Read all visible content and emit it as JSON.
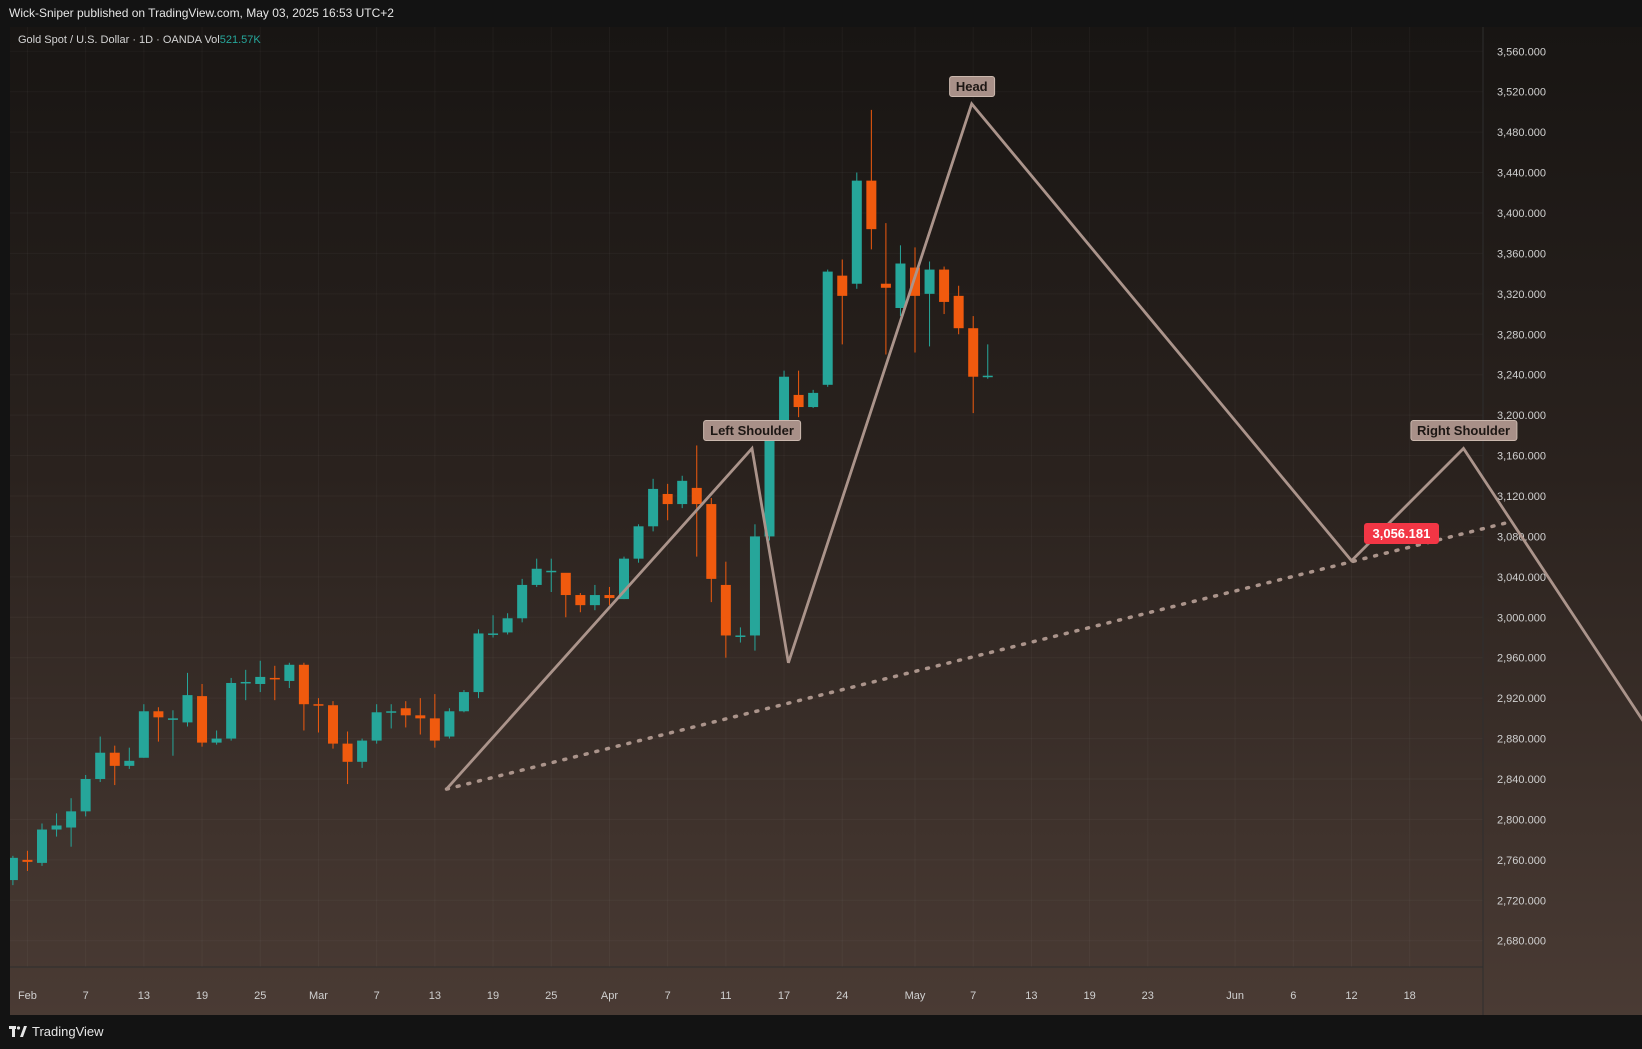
{
  "header": {
    "publisher_line": "Wick-Sniper published on TradingView.com, May 03, 2025 16:53 UTC+2"
  },
  "legend": {
    "symbol": "Gold Spot / U.S. Dollar · 1D · OANDA",
    "vol_label": "Vol",
    "vol_value": "521.57K"
  },
  "footer": {
    "brand": "TradingView"
  },
  "colors": {
    "up": "#26a69a",
    "down": "#f05a0e",
    "pattern": "#ab948b",
    "badge": "#f23645"
  },
  "chart_data": {
    "type": "candlestick",
    "y_ticks": [
      "2,680.000",
      "2,720.000",
      "2,760.000",
      "2,800.000",
      "2,840.000",
      "2,880.000",
      "2,920.000",
      "2,960.000",
      "3,000.000",
      "3,040.000",
      "3,080.000",
      "3,120.000",
      "3,160.000",
      "3,200.000",
      "3,240.000",
      "3,280.000",
      "3,320.000",
      "3,360.000",
      "3,400.000",
      "3,440.000",
      "3,480.000",
      "3,520.000",
      "3,560.000"
    ],
    "ylim": [
      2654,
      3584
    ],
    "x_ticks": [
      {
        "label": "Feb",
        "i": 1
      },
      {
        "label": "7",
        "i": 5
      },
      {
        "label": "13",
        "i": 9
      },
      {
        "label": "19",
        "i": 13
      },
      {
        "label": "25",
        "i": 17
      },
      {
        "label": "Mar",
        "i": 21
      },
      {
        "label": "7",
        "i": 25
      },
      {
        "label": "13",
        "i": 29
      },
      {
        "label": "19",
        "i": 33
      },
      {
        "label": "25",
        "i": 37
      },
      {
        "label": "Apr",
        "i": 41
      },
      {
        "label": "7",
        "i": 45
      },
      {
        "label": "11",
        "i": 49
      },
      {
        "label": "17",
        "i": 53
      },
      {
        "label": "24",
        "i": 57
      },
      {
        "label": "May",
        "i": 62
      },
      {
        "label": "7",
        "i": 66
      },
      {
        "label": "13",
        "i": 70
      },
      {
        "label": "19",
        "i": 74
      },
      {
        "label": "23",
        "i": 78
      },
      {
        "label": "Jun",
        "i": 84
      },
      {
        "label": "6",
        "i": 88
      },
      {
        "label": "12",
        "i": 92
      },
      {
        "label": "18",
        "i": 96
      }
    ],
    "candles": [
      [
        2740,
        2762,
        2735,
        2764
      ],
      [
        2760,
        2758,
        2749,
        2769
      ],
      [
        2757,
        2790,
        2754,
        2796
      ],
      [
        2790,
        2794,
        2783,
        2806
      ],
      [
        2792,
        2808,
        2773,
        2821
      ],
      [
        2808,
        2840,
        2803,
        2844
      ],
      [
        2840,
        2866,
        2837,
        2882
      ],
      [
        2866,
        2853,
        2834,
        2873
      ],
      [
        2853,
        2858,
        2850,
        2871
      ],
      [
        2861,
        2907,
        2861,
        2914
      ],
      [
        2907,
        2901,
        2877,
        2911
      ],
      [
        2900,
        2900,
        2863,
        2908
      ],
      [
        2896,
        2923,
        2892,
        2945
      ],
      [
        2922,
        2876,
        2872,
        2934
      ],
      [
        2876,
        2880,
        2874,
        2888
      ],
      [
        2880,
        2935,
        2878,
        2940
      ],
      [
        2935,
        2936,
        2918,
        2948
      ],
      [
        2934,
        2941,
        2926,
        2957
      ],
      [
        2940,
        2939,
        2918,
        2952
      ],
      [
        2937,
        2953,
        2930,
        2955
      ],
      [
        2953,
        2914,
        2888,
        2955
      ],
      [
        2914,
        2913,
        2886,
        2920
      ],
      [
        2913,
        2875,
        2870,
        2917
      ],
      [
        2875,
        2857,
        2835,
        2887
      ],
      [
        2857,
        2878,
        2851,
        2880
      ],
      [
        2878,
        2906,
        2875,
        2914
      ],
      [
        2906,
        2907,
        2890,
        2914
      ],
      [
        2910,
        2903,
        2891,
        2917
      ],
      [
        2903,
        2900,
        2884,
        2920
      ],
      [
        2900,
        2878,
        2871,
        2924
      ],
      [
        2882,
        2907,
        2880,
        2910
      ],
      [
        2907,
        2926,
        2906,
        2928
      ],
      [
        2926,
        2984,
        2920,
        2988
      ],
      [
        2984,
        2984,
        2980,
        3002
      ],
      [
        2985,
        2999,
        2983,
        3004
      ],
      [
        2999,
        3032,
        2995,
        3038
      ],
      [
        3032,
        3048,
        3030,
        3058
      ],
      [
        3046,
        3046,
        3025,
        3058
      ],
      [
        3044,
        3022,
        3000,
        3042
      ],
      [
        3022,
        3012,
        3005,
        3024
      ],
      [
        3012,
        3022,
        3007,
        3032
      ],
      [
        3022,
        3019,
        3012,
        3030
      ],
      [
        3018,
        3058,
        3018,
        3060
      ],
      [
        3058,
        3090,
        3054,
        3092
      ],
      [
        3090,
        3127,
        3085,
        3137
      ],
      [
        3122,
        3112,
        3096,
        3132
      ],
      [
        3112,
        3135,
        3108,
        3140
      ],
      [
        3128,
        3112,
        3060,
        3170
      ],
      [
        3112,
        3038,
        3015,
        3118
      ],
      [
        3032,
        2982,
        2960,
        3055
      ],
      [
        2982,
        2982,
        2975,
        2990
      ],
      [
        2982,
        3080,
        2967,
        3092
      ],
      [
        3080,
        3178,
        3076,
        3182
      ],
      [
        3178,
        3238,
        3178,
        3244
      ],
      [
        3220,
        3208,
        3198,
        3244
      ],
      [
        3208,
        3222,
        3207,
        3225
      ],
      [
        3230,
        3342,
        3228,
        3344
      ],
      [
        3338,
        3318,
        3270,
        3354
      ],
      [
        3330,
        3432,
        3325,
        3440
      ],
      [
        3432,
        3384,
        3364,
        3502
      ],
      [
        3330,
        3326,
        3260,
        3390
      ],
      [
        3306,
        3350,
        3298,
        3368
      ],
      [
        3346,
        3318,
        3262,
        3366
      ],
      [
        3320,
        3344,
        3268,
        3352
      ],
      [
        3344,
        3312,
        3300,
        3347
      ],
      [
        3318,
        3286,
        3280,
        3328
      ],
      [
        3286,
        3238,
        3202,
        3298
      ],
      [
        3238,
        3239,
        3236,
        3270
      ]
    ],
    "pattern_path": [
      [
        29.8,
        2830
      ],
      [
        50.8,
        3167
      ],
      [
        53.3,
        2955
      ],
      [
        65.9,
        3508
      ],
      [
        92.0,
        3056
      ],
      [
        99.7,
        3167
      ],
      [
        116.5,
        2800
      ]
    ],
    "neckline": [
      [
        29.8,
        2830
      ],
      [
        102.8,
        3094
      ]
    ],
    "annotations": [
      {
        "label": "Left Shoulder",
        "i": 50.8,
        "price": 3167
      },
      {
        "label": "Head",
        "i": 65.9,
        "price": 3508
      },
      {
        "label": "Right Shoulder",
        "i": 99.7,
        "price": 3167
      }
    ],
    "price_badge": {
      "label": "3,056.181",
      "i": 92.0,
      "price": 3056
    }
  }
}
